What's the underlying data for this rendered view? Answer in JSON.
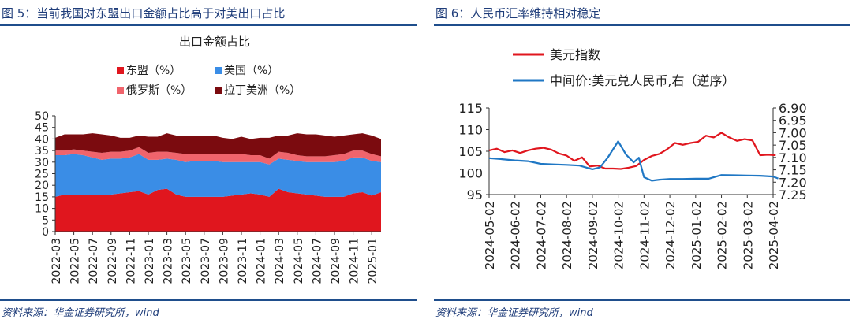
{
  "figures": [
    {
      "title": "图 5：当前我国对东盟出口金额占比高于对美出口占比",
      "source": "资料来源：华金证券研究所，wind"
    },
    {
      "title": "图 6：人民币汇率维持相对稳定",
      "source": "资料来源：华金证券研究所，wind"
    }
  ],
  "chart_data": [
    {
      "type": "area",
      "stacked": true,
      "title": "出口金额占比",
      "ylim": [
        0,
        50
      ],
      "yticks": [
        0,
        5,
        10,
        15,
        20,
        25,
        30,
        35,
        40,
        45,
        50
      ],
      "xtick_labels": [
        "2022-03",
        "2022-05",
        "2022-07",
        "2022-09",
        "2022-11",
        "2023-01",
        "2023-03",
        "2023-05",
        "2023-07",
        "2023-09",
        "2023-11",
        "2024-01",
        "2024-03",
        "2024-05",
        "2024-07",
        "2024-09",
        "2024-11",
        "2025-01"
      ],
      "legend_position": "top",
      "x": [
        "2022-03",
        "2022-04",
        "2022-05",
        "2022-06",
        "2022-07",
        "2022-08",
        "2022-09",
        "2022-10",
        "2022-11",
        "2022-12",
        "2023-01",
        "2023-02",
        "2023-03",
        "2023-04",
        "2023-05",
        "2023-06",
        "2023-07",
        "2023-08",
        "2023-09",
        "2023-10",
        "2023-11",
        "2023-12",
        "2024-01",
        "2024-02",
        "2024-03",
        "2024-04",
        "2024-05",
        "2024-06",
        "2024-07",
        "2024-08",
        "2024-09",
        "2024-10",
        "2024-11",
        "2024-12",
        "2025-01",
        "2025-02"
      ],
      "series": [
        {
          "name": "东盟（%）",
          "color": "#e0161e",
          "values": [
            15,
            16,
            16,
            16,
            16,
            16,
            16,
            16.5,
            17,
            17.5,
            16,
            18,
            18.5,
            16,
            15,
            15,
            15,
            15,
            15,
            15.5,
            16,
            16.5,
            16,
            15,
            18.5,
            17,
            16.5,
            16,
            15.5,
            15,
            15,
            15,
            16.5,
            17,
            15.5,
            17
          ]
        },
        {
          "name": "美国（%）",
          "color": "#3a8de6",
          "values": [
            18,
            17,
            17.5,
            17,
            16,
            15,
            15.5,
            15,
            15,
            16,
            15,
            13,
            13,
            15,
            15,
            15.5,
            15.5,
            15.5,
            15,
            14.5,
            14,
            13.5,
            14,
            14,
            13,
            14,
            14,
            14,
            14.5,
            15,
            15,
            15.5,
            15.5,
            15,
            15,
            13
          ]
        },
        {
          "name": "俄罗斯（%）",
          "color": "#f0646c",
          "values": [
            2,
            2,
            2,
            2,
            2.5,
            3,
            3,
            3,
            3,
            3,
            3,
            3.5,
            3,
            3,
            3.5,
            3,
            3,
            3,
            3.5,
            3.5,
            3.5,
            3,
            3,
            2.5,
            3,
            3,
            2.5,
            2.5,
            2.5,
            2.5,
            3,
            3,
            3,
            3,
            3,
            2.5
          ]
        },
        {
          "name": "拉丁美洲（%）",
          "color": "#7b0b0f",
          "values": [
            5.5,
            7,
            6.5,
            7,
            8,
            8,
            7,
            6,
            5.5,
            5,
            7,
            6.5,
            8,
            7.5,
            8,
            8,
            8,
            8,
            7,
            6.5,
            7.5,
            7,
            7.5,
            9,
            7,
            7.5,
            9.5,
            9.5,
            9.5,
            9,
            8,
            8,
            7,
            7.5,
            8,
            7.5
          ]
        }
      ]
    },
    {
      "type": "line",
      "dual_axis": true,
      "ylim_left": [
        95,
        115
      ],
      "yticks_left": [
        95,
        100,
        105,
        110,
        115
      ],
      "ylim_right": [
        7.25,
        6.9
      ],
      "yticks_right": [
        "6.90",
        "6.95",
        "7.00",
        "7.05",
        "7.10",
        "7.15",
        "7.20",
        "7.25"
      ],
      "right_axis_inverted": true,
      "xtick_labels": [
        "2024-05-02",
        "2024-06-02",
        "2024-07-02",
        "2024-08-02",
        "2024-09-02",
        "2024-10-02",
        "2024-11-02",
        "2024-12-02",
        "2025-01-02",
        "2025-02-02",
        "2025-03-02",
        "2025-04-02"
      ],
      "legend_position": "top",
      "series": [
        {
          "name": "美元指数",
          "axis": "left",
          "color": "#e0161e",
          "x": [
            0,
            0.3,
            0.6,
            0.9,
            1.2,
            1.5,
            1.8,
            2.1,
            2.4,
            2.7,
            3.0,
            3.3,
            3.6,
            3.9,
            4.2,
            4.5,
            4.8,
            5.1,
            5.4,
            5.7,
            6.0,
            6.3,
            6.6,
            6.9,
            7.2,
            7.5,
            7.8,
            8.1,
            8.4,
            8.7,
            9.0,
            9.3,
            9.6,
            9.9,
            10.2,
            10.5,
            10.8,
            11.1
          ],
          "values": [
            105.2,
            105.6,
            104.8,
            105.2,
            104.6,
            105.2,
            105.6,
            105.8,
            105.4,
            104.5,
            104.0,
            102.8,
            103.6,
            101.5,
            101.7,
            101.0,
            101.0,
            100.9,
            101.2,
            101.6,
            103.0,
            103.9,
            104.4,
            105.5,
            106.9,
            106.5,
            106.9,
            107.2,
            108.6,
            108.2,
            109.3,
            108.2,
            107.4,
            107.8,
            107.5,
            104.1,
            104.2,
            104.1
          ]
        },
        {
          "name": "中间价:美元兑人民币,右（逆序）",
          "axis": "right",
          "color": "#1f77c4",
          "x": [
            0,
            0.5,
            1.0,
            1.5,
            2.0,
            2.5,
            3.0,
            3.5,
            4.0,
            4.3,
            4.6,
            5.0,
            5.3,
            5.6,
            5.8,
            6.0,
            6.3,
            6.6,
            7.0,
            7.5,
            8.0,
            8.5,
            9.0,
            9.5,
            10.0,
            10.5,
            11.0,
            11.2
          ],
          "values": [
            7.103,
            7.107,
            7.112,
            7.115,
            7.126,
            7.128,
            7.13,
            7.133,
            7.148,
            7.14,
            7.1,
            7.035,
            7.088,
            7.12,
            7.101,
            7.18,
            7.194,
            7.19,
            7.187,
            7.187,
            7.186,
            7.186,
            7.171,
            7.172,
            7.173,
            7.174,
            7.177,
            7.185
          ]
        }
      ]
    }
  ]
}
